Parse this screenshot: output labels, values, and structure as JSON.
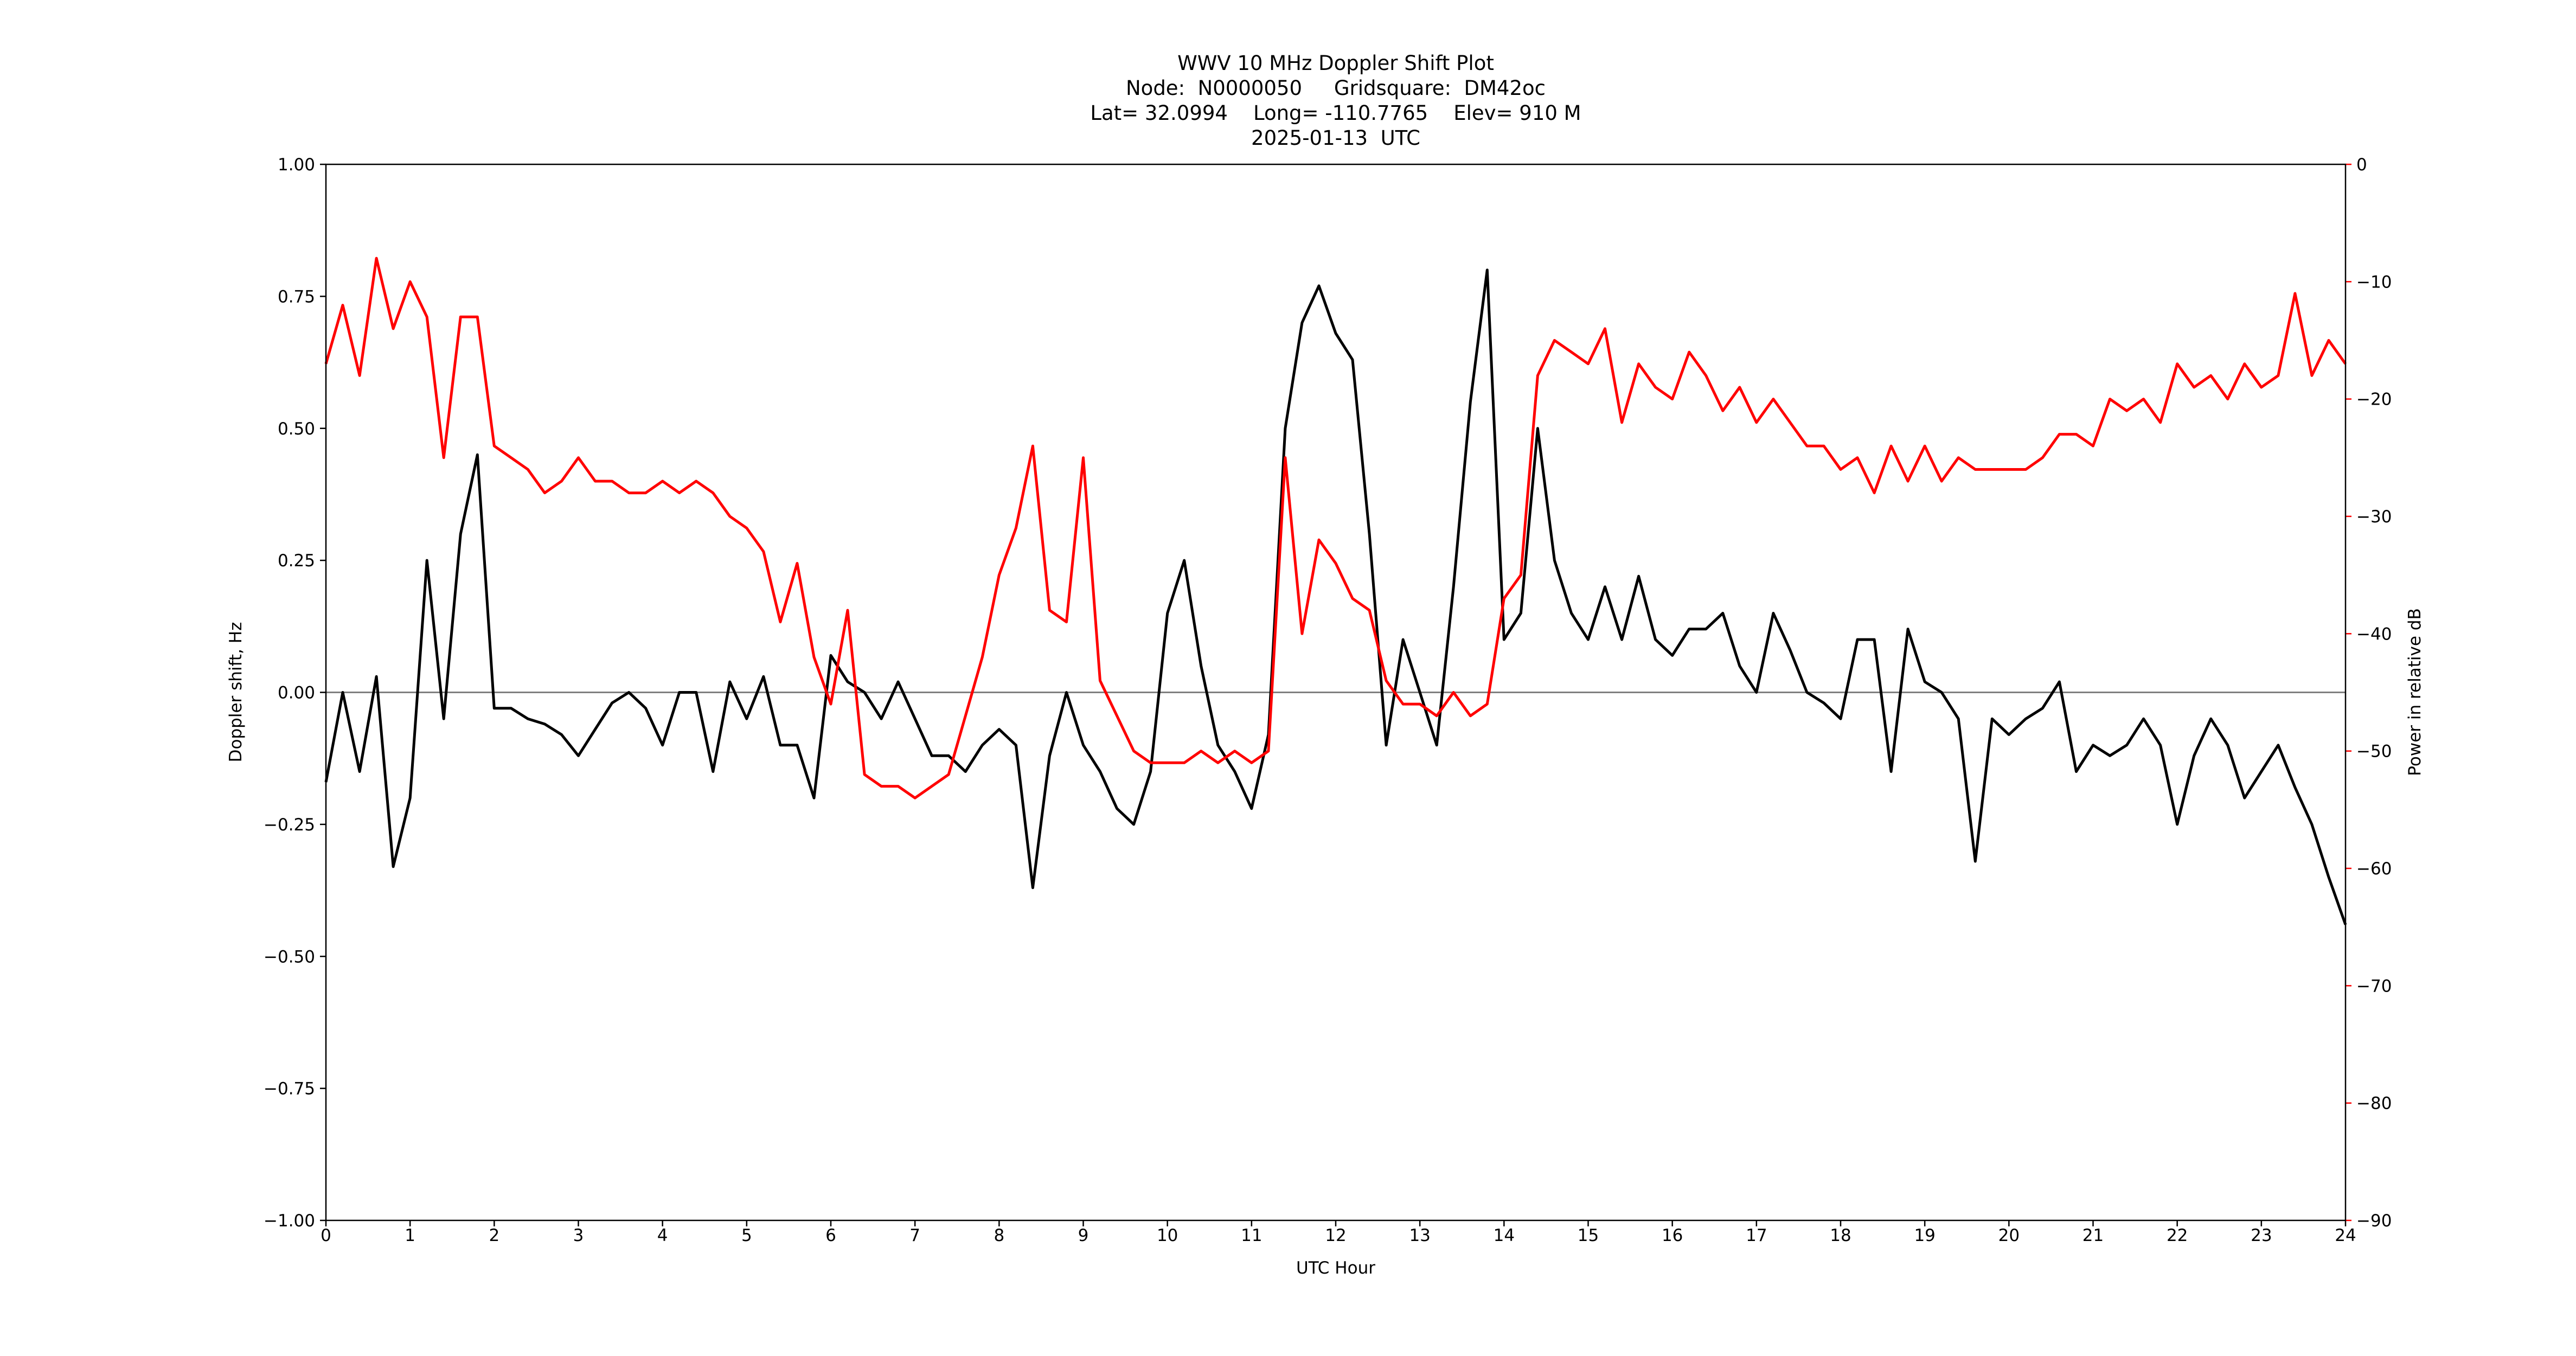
{
  "chart_data": {
    "type": "line",
    "title": "WWV 10 MHz Doppler Shift Plot",
    "subtitle": [
      "Node:  N0000050     Gridsquare:  DM42oc",
      "Lat= 32.0994    Long= -110.7765    Elev= 910 M",
      "2025-01-13  UTC"
    ],
    "xlabel": "UTC Hour",
    "ylabel": "Doppler shift, Hz",
    "y2label": "Power in relative dB",
    "x": [
      0,
      0.2,
      0.4,
      0.6,
      0.8,
      1,
      1.2,
      1.4,
      1.6,
      1.8,
      2,
      2.2,
      2.4,
      2.6,
      2.8,
      3,
      3.2,
      3.4,
      3.6,
      3.8,
      4,
      4.2,
      4.4,
      4.6,
      4.8,
      5,
      5.2,
      5.4,
      5.6,
      5.8,
      6,
      6.2,
      6.4,
      6.6,
      6.8,
      7,
      7.2,
      7.4,
      7.6,
      7.8,
      8,
      8.2,
      8.4,
      8.6,
      8.8,
      9,
      9.2,
      9.4,
      9.6,
      9.8,
      10,
      10.2,
      10.4,
      10.6,
      10.8,
      11,
      11.2,
      11.4,
      11.6,
      11.8,
      12,
      12.2,
      12.4,
      12.6,
      12.8,
      13,
      13.2,
      13.4,
      13.6,
      13.8,
      14,
      14.2,
      14.4,
      14.6,
      14.8,
      15,
      15.2,
      15.4,
      15.6,
      15.8,
      16,
      16.2,
      16.4,
      16.6,
      16.8,
      17,
      17.2,
      17.4,
      17.6,
      17.8,
      18,
      18.2,
      18.4,
      18.6,
      18.8,
      19,
      19.2,
      19.4,
      19.6,
      19.8,
      20,
      20.2,
      20.4,
      20.6,
      20.8,
      21,
      21.2,
      21.4,
      21.6,
      21.8,
      22,
      22.2,
      22.4,
      22.6,
      22.8,
      23,
      23.2,
      23.4,
      23.6,
      23.8,
      24
    ],
    "series": [
      {
        "name": "Doppler shift",
        "color": "#000000",
        "axis": "y",
        "values": [
          -0.17,
          0.0,
          -0.15,
          0.03,
          -0.33,
          -0.2,
          0.25,
          -0.05,
          0.3,
          0.45,
          -0.03,
          -0.03,
          -0.05,
          -0.06,
          -0.08,
          -0.12,
          -0.07,
          -0.02,
          0.0,
          -0.03,
          -0.1,
          0.0,
          0.0,
          -0.15,
          0.02,
          -0.05,
          0.03,
          -0.1,
          -0.1,
          -0.2,
          0.07,
          0.02,
          0.0,
          -0.05,
          0.02,
          -0.05,
          -0.12,
          -0.12,
          -0.15,
          -0.1,
          -0.07,
          -0.1,
          -0.37,
          -0.12,
          0.0,
          -0.1,
          -0.15,
          -0.22,
          -0.25,
          -0.15,
          0.15,
          0.25,
          0.05,
          -0.1,
          -0.15,
          -0.22,
          -0.08,
          0.5,
          0.7,
          0.77,
          0.68,
          0.63,
          0.3,
          -0.1,
          0.1,
          0.0,
          -0.1,
          0.2,
          0.55,
          0.8,
          0.1,
          0.15,
          0.5,
          0.25,
          0.15,
          0.1,
          0.2,
          0.1,
          0.22,
          0.1,
          0.07,
          0.12,
          0.12,
          0.15,
          0.05,
          0.0,
          0.15,
          0.08,
          0.0,
          -0.02,
          -0.05,
          0.1,
          0.1,
          -0.15,
          0.12,
          0.02,
          0.0,
          -0.05,
          -0.32,
          -0.05,
          -0.08,
          -0.05,
          -0.03,
          0.02,
          -0.15,
          -0.1,
          -0.12,
          -0.1,
          -0.05,
          -0.1,
          -0.25,
          -0.12,
          -0.05,
          -0.1,
          -0.2,
          -0.15,
          -0.1,
          -0.18,
          -0.25,
          -0.35,
          -0.44
        ]
      },
      {
        "name": "Power",
        "color": "#ff0000",
        "axis": "y2",
        "values": [
          -17,
          -12,
          -18,
          -8,
          -14,
          -10,
          -13,
          -25,
          -13,
          -13,
          -24,
          -25,
          -26,
          -28,
          -27,
          -25,
          -27,
          -27,
          -28,
          -28,
          -27,
          -28,
          -27,
          -28,
          -30,
          -31,
          -33,
          -39,
          -34,
          -42,
          -46,
          -38,
          -52,
          -53,
          -53,
          -54,
          -53,
          -52,
          -47,
          -42,
          -35,
          -31,
          -24,
          -38,
          -39,
          -25,
          -44,
          -47,
          -50,
          -51,
          -51,
          -51,
          -50,
          -51,
          -50,
          -51,
          -50,
          -25,
          -40,
          -32,
          -34,
          -37,
          -38,
          -44,
          -46,
          -46,
          -47,
          -45,
          -47,
          -46,
          -37,
          -35,
          -18,
          -15,
          -16,
          -17,
          -14,
          -22,
          -17,
          -19,
          -20,
          -16,
          -18,
          -21,
          -19,
          -22,
          -20,
          -22,
          -24,
          -24,
          -26,
          -25,
          -28,
          -24,
          -27,
          -24,
          -27,
          -25,
          -26,
          -26,
          -26,
          -26,
          -25,
          -23,
          -23,
          -24,
          -20,
          -21,
          -20,
          -22,
          -17,
          -19,
          -18,
          -20,
          -17,
          -19,
          -18,
          -11,
          -18,
          -15,
          -17
        ]
      }
    ],
    "hline": 0,
    "xlim": [
      0,
      24
    ],
    "xticks": [
      0,
      1,
      2,
      3,
      4,
      5,
      6,
      7,
      8,
      9,
      10,
      11,
      12,
      13,
      14,
      15,
      16,
      17,
      18,
      19,
      20,
      21,
      22,
      23,
      24
    ],
    "ylim": [
      -1,
      1
    ],
    "yticks": [
      {
        "value": -1,
        "label": "−1.00"
      },
      {
        "value": -0.75,
        "label": "−0.75"
      },
      {
        "value": -0.5,
        "label": "−0.50"
      },
      {
        "value": -0.25,
        "label": "−0.25"
      },
      {
        "value": 0,
        "label": "0.00"
      },
      {
        "value": 0.25,
        "label": "0.25"
      },
      {
        "value": 0.5,
        "label": "0.50"
      },
      {
        "value": 0.75,
        "label": "0.75"
      },
      {
        "value": 1,
        "label": "1.00"
      }
    ],
    "y2lim": [
      -90,
      0
    ],
    "y2ticks": [
      {
        "value": -90,
        "label": "−90"
      },
      {
        "value": -80,
        "label": "−80"
      },
      {
        "value": -70,
        "label": "−70"
      },
      {
        "value": -60,
        "label": "−60"
      },
      {
        "value": -50,
        "label": "−50"
      },
      {
        "value": -40,
        "label": "−40"
      },
      {
        "value": -30,
        "label": "−30"
      },
      {
        "value": -20,
        "label": "−20"
      },
      {
        "value": -10,
        "label": "−10"
      },
      0
    ],
    "y2color": "#ff0000"
  }
}
